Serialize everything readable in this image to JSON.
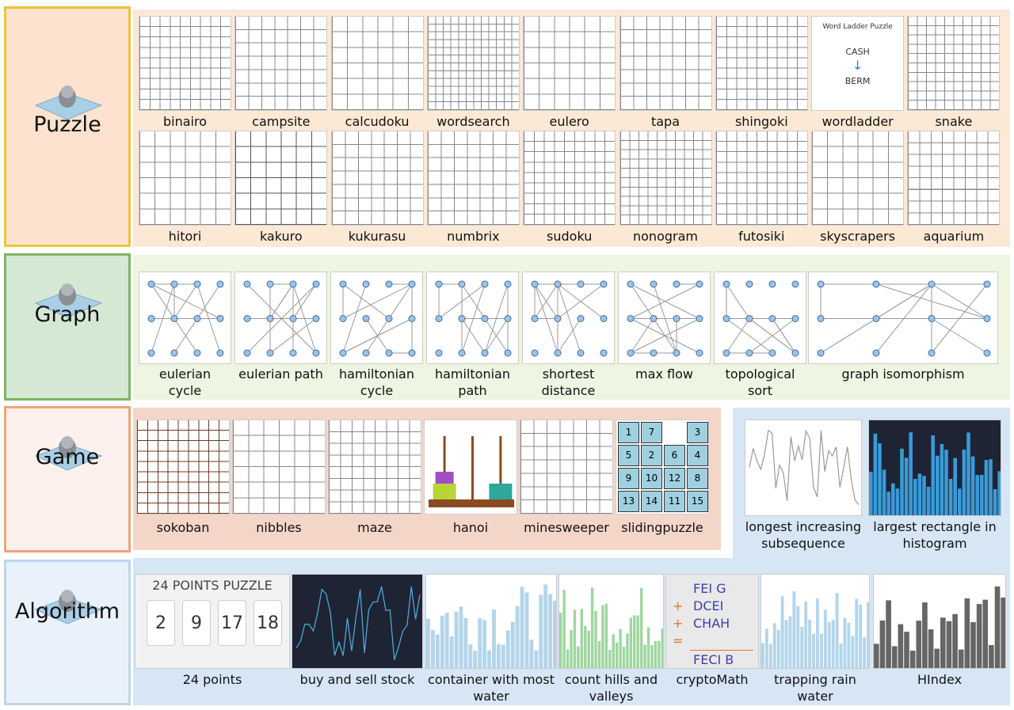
{
  "sections": [
    {
      "title": "Puzzle",
      "items": [
        {
          "label": "binairo"
        },
        {
          "label": "campsite"
        },
        {
          "label": "calcudoku"
        },
        {
          "label": "wordsearch"
        },
        {
          "label": "eulero"
        },
        {
          "label": "tapa"
        },
        {
          "label": "shingoki"
        },
        {
          "label": "wordladder",
          "thumb_text": [
            "Word Ladder Puzzle",
            "CASH",
            "BERM"
          ]
        },
        {
          "label": "snake"
        },
        {
          "label": "hitori"
        },
        {
          "label": "kakuro"
        },
        {
          "label": "kukurasu"
        },
        {
          "label": "numbrix"
        },
        {
          "label": "sudoku"
        },
        {
          "label": "nonogram"
        },
        {
          "label": "futosiki"
        },
        {
          "label": "skyscrapers"
        },
        {
          "label": "aquarium"
        }
      ]
    },
    {
      "title": "Graph",
      "items": [
        {
          "label": "eulerian cycle"
        },
        {
          "label": "eulerian path"
        },
        {
          "label": "hamiltonian cycle"
        },
        {
          "label": "hamiltonian path"
        },
        {
          "label": "shortest distance"
        },
        {
          "label": "max flow"
        },
        {
          "label": "topological sort"
        },
        {
          "label": "graph isomorphism"
        }
      ]
    },
    {
      "title": "Game",
      "items": [
        {
          "label": "sokoban"
        },
        {
          "label": "nibbles"
        },
        {
          "label": "maze"
        },
        {
          "label": "hanoi"
        },
        {
          "label": "minesweeper"
        },
        {
          "label": "slidingpuzzle",
          "thumb_text": [
            "1",
            "7",
            null,
            "3",
            "5",
            "2",
            "6",
            "4",
            "9",
            "10",
            "12",
            "8",
            "13",
            "14",
            "11",
            "15"
          ]
        }
      ]
    },
    {
      "title": "Algorithm",
      "items": [
        {
          "label": "longest increasing subsequence"
        },
        {
          "label": "largest rectangle in histogram"
        },
        {
          "label": "24 points",
          "thumb_text": [
            "24 POINTS PUZZLE",
            "2",
            "9",
            "17",
            "18"
          ]
        },
        {
          "label": "buy and sell stock"
        },
        {
          "label": "container with most water"
        },
        {
          "label": "count hills and valleys"
        },
        {
          "label": "cryptoMath",
          "thumb_text": [
            "FEI G",
            "+",
            "DCEI",
            "+",
            "CHAH",
            "=",
            "FECI B"
          ]
        },
        {
          "label": "trapping rain water"
        },
        {
          "label": "HIndex"
        }
      ]
    }
  ]
}
